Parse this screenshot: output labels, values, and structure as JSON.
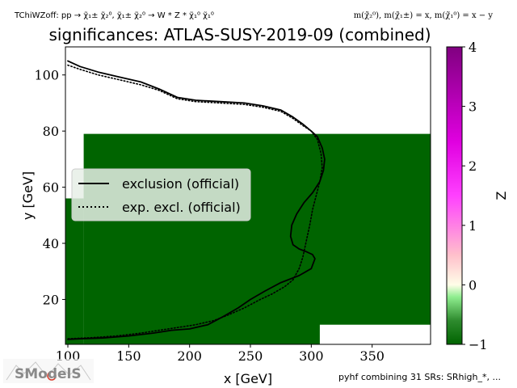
{
  "header": {
    "top_left": "TChiWZoff: pp → χ̃₁± χ̃₂⁰, χ̃₁± χ̃₂⁰ → W * Z * χ̃₁⁰ χ̃₁⁰",
    "top_right": "m(χ̃₂⁰), m(χ̃₁±) = x, m(χ̃₁⁰) = x − y"
  },
  "footer": {
    "note": "pyhf combining 31 SRs: SRhigh_*, ...",
    "logo_text": "SModelS"
  },
  "colors": {
    "significance_fill": "#006400",
    "curve": "#000000",
    "colorbar": [
      "#006400",
      "#ffffe0",
      "#ff00ff",
      "#800080"
    ]
  },
  "chart_data": {
    "type": "heatmap",
    "title": "significances: ATLAS-SUSY-2019-09 (combined)",
    "xlabel": "x [GeV]",
    "ylabel": "y [GeV]",
    "xlim": [
      98,
      398
    ],
    "ylim": [
      4,
      110
    ],
    "xticks": [
      100,
      150,
      200,
      250,
      300,
      350
    ],
    "yticks": [
      20,
      40,
      60,
      80,
      100
    ],
    "grid": false,
    "legend_position": "center-left",
    "colorbar": {
      "label": "Z",
      "range": [
        -1,
        4
      ],
      "ticks": [
        -1,
        0,
        1,
        2,
        3,
        4
      ]
    },
    "z_regions": [
      {
        "x": [
          98,
          113
        ],
        "y": [
          4,
          56
        ],
        "z": -1
      },
      {
        "x": [
          113,
          398
        ],
        "y": [
          4,
          79
        ],
        "z": -1
      }
    ],
    "z_empty_regions": [
      {
        "x": [
          307,
          398
        ],
        "y": [
          4,
          11
        ]
      }
    ],
    "series": [
      {
        "name": "exclusion (official)",
        "style": "solid",
        "x": [
          100,
          110,
          125,
          140,
          160,
          175,
          190,
          205,
          225,
          245,
          260,
          275,
          285,
          293,
          300,
          305,
          309,
          311,
          310,
          307,
          301,
          294,
          288,
          284,
          283,
          285,
          290,
          296,
          301,
          303,
          300,
          290,
          275,
          262,
          250,
          240,
          228,
          215,
          200,
          185,
          170,
          150,
          130,
          110,
          100
        ],
        "y": [
          105,
          103,
          101,
          99.5,
          97.5,
          95,
          92,
          91,
          90.5,
          90,
          89,
          87.5,
          85,
          82.5,
          80,
          78,
          74,
          70,
          66,
          62,
          58,
          54.5,
          50.5,
          46.5,
          42.5,
          39.5,
          38,
          37,
          36,
          34.5,
          31,
          28.5,
          26,
          23,
          20,
          17,
          14,
          11,
          9.5,
          9,
          8,
          7,
          6.3,
          6,
          5.8
        ]
      },
      {
        "name": "exp. excl. (official)",
        "style": "dotted",
        "x": [
          100,
          110,
          125,
          140,
          160,
          175,
          190,
          205,
          225,
          245,
          260,
          275,
          285,
          293,
          300,
          305,
          308,
          309,
          307,
          304,
          301,
          299,
          297,
          295,
          293,
          290,
          285,
          278,
          268,
          258,
          245,
          232,
          220,
          205,
          190,
          175,
          160,
          140,
          120,
          100
        ],
        "y": [
          103.5,
          102,
          100,
          98.5,
          96.5,
          94.5,
          91.5,
          90.5,
          90,
          89.5,
          88.5,
          87,
          84.5,
          82,
          80,
          77,
          72,
          67,
          62,
          57,
          52,
          47,
          43,
          39,
          35,
          31,
          27,
          24.5,
          22,
          20,
          17,
          14.5,
          12.5,
          11,
          10,
          9,
          8,
          7,
          6.4,
          6
        ]
      }
    ]
  }
}
